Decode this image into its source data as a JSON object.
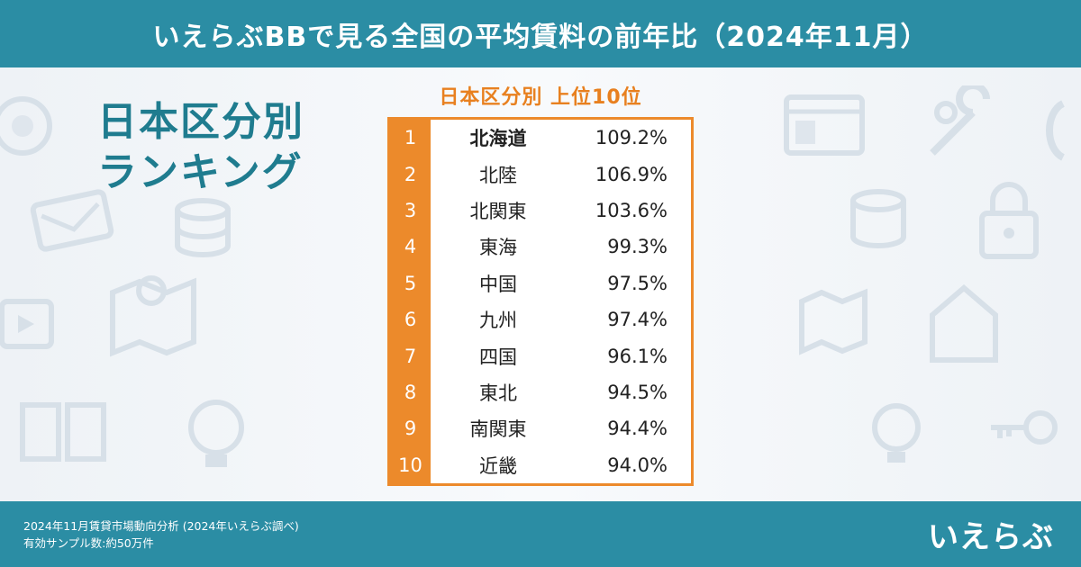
{
  "header": {
    "title": "いえらぶBBで見る全国の平均賃料の前年比（2024年11月）"
  },
  "left_title": {
    "line1": "日本区分別",
    "line2": "ランキング"
  },
  "footer": {
    "note_line1": "2024年11月賃貸市場動向分析 (2024年いえらぶ調べ)",
    "note_line2": "有効サンプル数:約50万件",
    "logo": "いえらぶ"
  },
  "colors": {
    "header_bg": "#2b8da4",
    "accent": "#ec8a2b",
    "title": "#1f7c8f"
  },
  "chart_data": {
    "type": "table",
    "title": "日本区分別 上位10位",
    "columns": [
      "rank",
      "region",
      "value"
    ],
    "rows": [
      {
        "rank": "1",
        "region": "北海道",
        "value": "109.2%"
      },
      {
        "rank": "2",
        "region": "北陸",
        "value": "106.9%"
      },
      {
        "rank": "3",
        "region": "北関東",
        "value": "103.6%"
      },
      {
        "rank": "4",
        "region": "東海",
        "value": "99.3%"
      },
      {
        "rank": "5",
        "region": "中国",
        "value": "97.5%"
      },
      {
        "rank": "6",
        "region": "九州",
        "value": "97.4%"
      },
      {
        "rank": "7",
        "region": "四国",
        "value": "96.1%"
      },
      {
        "rank": "8",
        "region": "東北",
        "value": "94.5%"
      },
      {
        "rank": "9",
        "region": "南関東",
        "value": "94.4%"
      },
      {
        "rank": "10",
        "region": "近畿",
        "value": "94.0%"
      }
    ]
  }
}
